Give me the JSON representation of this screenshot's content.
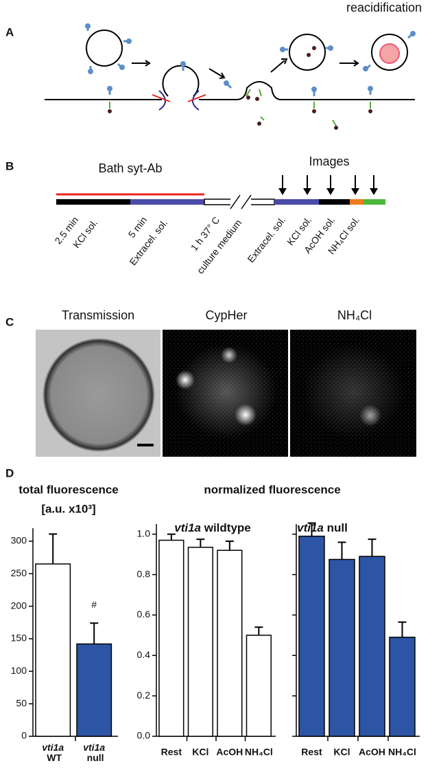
{
  "panel_labels": [
    "A",
    "B",
    "C",
    "D"
  ],
  "panel_a": {
    "label": "reacidification"
  },
  "panel_b": {
    "bath_label": "Bath syt-Ab",
    "images_label": "Images",
    "steps": [
      "2.5 min",
      "KCl sol.",
      "5 min",
      "Extracel. sol.",
      "1 h 37° C",
      "culture medium",
      "Extracel. sol.",
      "KCl sol.",
      "AcOH sol.",
      "NH₄Cl sol."
    ]
  },
  "panel_c": {
    "titles": [
      "Transmission",
      "CypHer",
      "NH₄Cl"
    ]
  },
  "panel_d": {
    "heading": "normalized fluorescence"
  },
  "chart_data": [
    {
      "type": "bar",
      "title": "total fluorescence",
      "y_label": "[a.u. x10³]",
      "categories": [
        "vti1a WT",
        "vti1a null"
      ],
      "values": [
        265,
        142
      ],
      "errors": [
        46,
        32
      ],
      "colors": [
        "#ffffff",
        "#2d55a5"
      ],
      "annotations": [
        null,
        "#"
      ],
      "ylim": [
        0,
        320
      ],
      "yticks": [
        0,
        50,
        100,
        150,
        200,
        250,
        300
      ],
      "show_tick_labels": true
    },
    {
      "type": "bar",
      "title": "vti1a wildtype",
      "categories": [
        "Rest",
        "KCl",
        "AcOH",
        "NH₄Cl"
      ],
      "values": [
        0.97,
        0.935,
        0.92,
        0.5
      ],
      "errors": [
        0.03,
        0.04,
        0.045,
        0.04
      ],
      "color": "#ffffff",
      "ylim": [
        0,
        1.05
      ],
      "yticks": [
        {
          "value": 0,
          "label": "0.0"
        },
        0.2,
        0.4,
        0.6,
        0.8,
        {
          "value": 1,
          "label": "1.0"
        }
      ],
      "show_tick_labels": true
    },
    {
      "type": "bar",
      "title": "vti1a null",
      "categories": [
        "Rest",
        "KCl",
        "AcOH",
        "NH₄Cl"
      ],
      "values": [
        0.99,
        0.875,
        0.89,
        0.49
      ],
      "errors": [
        0.065,
        0.085,
        0.085,
        0.075
      ],
      "color": "#2d55a5",
      "ylim": [
        0,
        1.05
      ],
      "yticks": [
        0,
        0.2,
        0.4,
        0.6,
        0.8,
        1
      ],
      "show_tick_labels": false
    }
  ]
}
